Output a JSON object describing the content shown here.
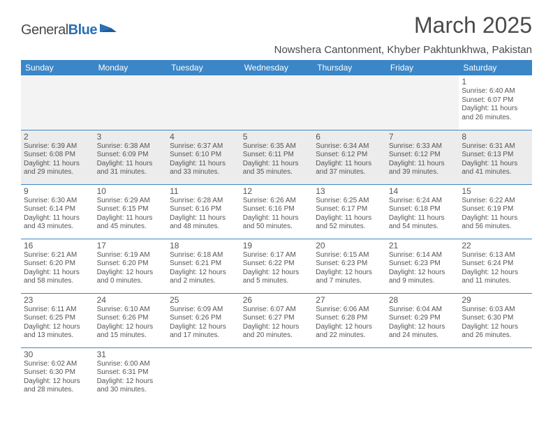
{
  "logo": {
    "part1": "General",
    "part2": "Blue"
  },
  "title": "March 2025",
  "location": "Nowshera Cantonment, Khyber Pakhtunkhwa, Pakistan",
  "colors": {
    "header_bg": "#3b86c7",
    "header_fg": "#ffffff",
    "text": "#555555"
  },
  "day_headers": [
    "Sunday",
    "Monday",
    "Tuesday",
    "Wednesday",
    "Thursday",
    "Friday",
    "Saturday"
  ],
  "weeks": [
    [
      {
        "empty": true
      },
      {
        "empty": true
      },
      {
        "empty": true
      },
      {
        "empty": true
      },
      {
        "empty": true
      },
      {
        "empty": true
      },
      {
        "n": "1",
        "sr": "Sunrise: 6:40 AM",
        "ss": "Sunset: 6:07 PM",
        "d1": "Daylight: 11 hours",
        "d2": "and 26 minutes."
      }
    ],
    [
      {
        "n": "2",
        "shaded": true,
        "sr": "Sunrise: 6:39 AM",
        "ss": "Sunset: 6:08 PM",
        "d1": "Daylight: 11 hours",
        "d2": "and 29 minutes."
      },
      {
        "n": "3",
        "shaded": true,
        "sr": "Sunrise: 6:38 AM",
        "ss": "Sunset: 6:09 PM",
        "d1": "Daylight: 11 hours",
        "d2": "and 31 minutes."
      },
      {
        "n": "4",
        "shaded": true,
        "sr": "Sunrise: 6:37 AM",
        "ss": "Sunset: 6:10 PM",
        "d1": "Daylight: 11 hours",
        "d2": "and 33 minutes."
      },
      {
        "n": "5",
        "shaded": true,
        "sr": "Sunrise: 6:35 AM",
        "ss": "Sunset: 6:11 PM",
        "d1": "Daylight: 11 hours",
        "d2": "and 35 minutes."
      },
      {
        "n": "6",
        "shaded": true,
        "sr": "Sunrise: 6:34 AM",
        "ss": "Sunset: 6:12 PM",
        "d1": "Daylight: 11 hours",
        "d2": "and 37 minutes."
      },
      {
        "n": "7",
        "shaded": true,
        "sr": "Sunrise: 6:33 AM",
        "ss": "Sunset: 6:12 PM",
        "d1": "Daylight: 11 hours",
        "d2": "and 39 minutes."
      },
      {
        "n": "8",
        "shaded": true,
        "sr": "Sunrise: 6:31 AM",
        "ss": "Sunset: 6:13 PM",
        "d1": "Daylight: 11 hours",
        "d2": "and 41 minutes."
      }
    ],
    [
      {
        "n": "9",
        "sr": "Sunrise: 6:30 AM",
        "ss": "Sunset: 6:14 PM",
        "d1": "Daylight: 11 hours",
        "d2": "and 43 minutes."
      },
      {
        "n": "10",
        "sr": "Sunrise: 6:29 AM",
        "ss": "Sunset: 6:15 PM",
        "d1": "Daylight: 11 hours",
        "d2": "and 45 minutes."
      },
      {
        "n": "11",
        "sr": "Sunrise: 6:28 AM",
        "ss": "Sunset: 6:16 PM",
        "d1": "Daylight: 11 hours",
        "d2": "and 48 minutes."
      },
      {
        "n": "12",
        "sr": "Sunrise: 6:26 AM",
        "ss": "Sunset: 6:16 PM",
        "d1": "Daylight: 11 hours",
        "d2": "and 50 minutes."
      },
      {
        "n": "13",
        "sr": "Sunrise: 6:25 AM",
        "ss": "Sunset: 6:17 PM",
        "d1": "Daylight: 11 hours",
        "d2": "and 52 minutes."
      },
      {
        "n": "14",
        "sr": "Sunrise: 6:24 AM",
        "ss": "Sunset: 6:18 PM",
        "d1": "Daylight: 11 hours",
        "d2": "and 54 minutes."
      },
      {
        "n": "15",
        "sr": "Sunrise: 6:22 AM",
        "ss": "Sunset: 6:19 PM",
        "d1": "Daylight: 11 hours",
        "d2": "and 56 minutes."
      }
    ],
    [
      {
        "n": "16",
        "sr": "Sunrise: 6:21 AM",
        "ss": "Sunset: 6:20 PM",
        "d1": "Daylight: 11 hours",
        "d2": "and 58 minutes."
      },
      {
        "n": "17",
        "sr": "Sunrise: 6:19 AM",
        "ss": "Sunset: 6:20 PM",
        "d1": "Daylight: 12 hours",
        "d2": "and 0 minutes."
      },
      {
        "n": "18",
        "sr": "Sunrise: 6:18 AM",
        "ss": "Sunset: 6:21 PM",
        "d1": "Daylight: 12 hours",
        "d2": "and 2 minutes."
      },
      {
        "n": "19",
        "sr": "Sunrise: 6:17 AM",
        "ss": "Sunset: 6:22 PM",
        "d1": "Daylight: 12 hours",
        "d2": "and 5 minutes."
      },
      {
        "n": "20",
        "sr": "Sunrise: 6:15 AM",
        "ss": "Sunset: 6:23 PM",
        "d1": "Daylight: 12 hours",
        "d2": "and 7 minutes."
      },
      {
        "n": "21",
        "sr": "Sunrise: 6:14 AM",
        "ss": "Sunset: 6:23 PM",
        "d1": "Daylight: 12 hours",
        "d2": "and 9 minutes."
      },
      {
        "n": "22",
        "sr": "Sunrise: 6:13 AM",
        "ss": "Sunset: 6:24 PM",
        "d1": "Daylight: 12 hours",
        "d2": "and 11 minutes."
      }
    ],
    [
      {
        "n": "23",
        "sr": "Sunrise: 6:11 AM",
        "ss": "Sunset: 6:25 PM",
        "d1": "Daylight: 12 hours",
        "d2": "and 13 minutes."
      },
      {
        "n": "24",
        "sr": "Sunrise: 6:10 AM",
        "ss": "Sunset: 6:26 PM",
        "d1": "Daylight: 12 hours",
        "d2": "and 15 minutes."
      },
      {
        "n": "25",
        "sr": "Sunrise: 6:09 AM",
        "ss": "Sunset: 6:26 PM",
        "d1": "Daylight: 12 hours",
        "d2": "and 17 minutes."
      },
      {
        "n": "26",
        "sr": "Sunrise: 6:07 AM",
        "ss": "Sunset: 6:27 PM",
        "d1": "Daylight: 12 hours",
        "d2": "and 20 minutes."
      },
      {
        "n": "27",
        "sr": "Sunrise: 6:06 AM",
        "ss": "Sunset: 6:28 PM",
        "d1": "Daylight: 12 hours",
        "d2": "and 22 minutes."
      },
      {
        "n": "28",
        "sr": "Sunrise: 6:04 AM",
        "ss": "Sunset: 6:29 PM",
        "d1": "Daylight: 12 hours",
        "d2": "and 24 minutes."
      },
      {
        "n": "29",
        "sr": "Sunrise: 6:03 AM",
        "ss": "Sunset: 6:30 PM",
        "d1": "Daylight: 12 hours",
        "d2": "and 26 minutes."
      }
    ],
    [
      {
        "n": "30",
        "sr": "Sunrise: 6:02 AM",
        "ss": "Sunset: 6:30 PM",
        "d1": "Daylight: 12 hours",
        "d2": "and 28 minutes."
      },
      {
        "n": "31",
        "sr": "Sunrise: 6:00 AM",
        "ss": "Sunset: 6:31 PM",
        "d1": "Daylight: 12 hours",
        "d2": "and 30 minutes."
      },
      {
        "empty": true,
        "last": true
      },
      {
        "empty": true,
        "last": true
      },
      {
        "empty": true,
        "last": true
      },
      {
        "empty": true,
        "last": true
      },
      {
        "empty": true,
        "last": true
      }
    ]
  ]
}
